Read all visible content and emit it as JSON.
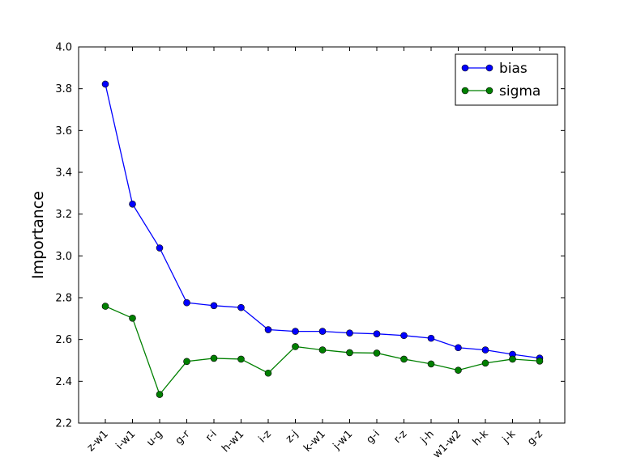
{
  "chart_data": {
    "type": "line",
    "title": "",
    "xlabel": "",
    "ylabel": "Importance",
    "categories": [
      "z-w1",
      "i-w1",
      "u-g",
      "g-r",
      "r-i",
      "h-w1",
      "i-z",
      "z-j",
      "k-w1",
      "j-w1",
      "g-i",
      "r-z",
      "j-h",
      "w1-w2",
      "h-k",
      "j-k",
      "g-z"
    ],
    "ylim": [
      2.2,
      4.0
    ],
    "yticks": [
      "2.2",
      "2.4",
      "2.6",
      "2.8",
      "3.0",
      "3.2",
      "3.4",
      "3.6",
      "3.8",
      "4.0"
    ],
    "grid": false,
    "legend": "top-right",
    "series": [
      {
        "name": "bias",
        "color": "#0000ff",
        "values": [
          3.822,
          3.248,
          3.038,
          2.776,
          2.762,
          2.753,
          2.647,
          2.639,
          2.639,
          2.631,
          2.627,
          2.619,
          2.606,
          2.561,
          2.55,
          2.529,
          2.511
        ]
      },
      {
        "name": "sigma",
        "color": "#008000",
        "values": [
          2.759,
          2.702,
          2.337,
          2.495,
          2.51,
          2.506,
          2.439,
          2.566,
          2.55,
          2.537,
          2.535,
          2.506,
          2.483,
          2.453,
          2.487,
          2.506,
          2.497
        ]
      }
    ]
  }
}
